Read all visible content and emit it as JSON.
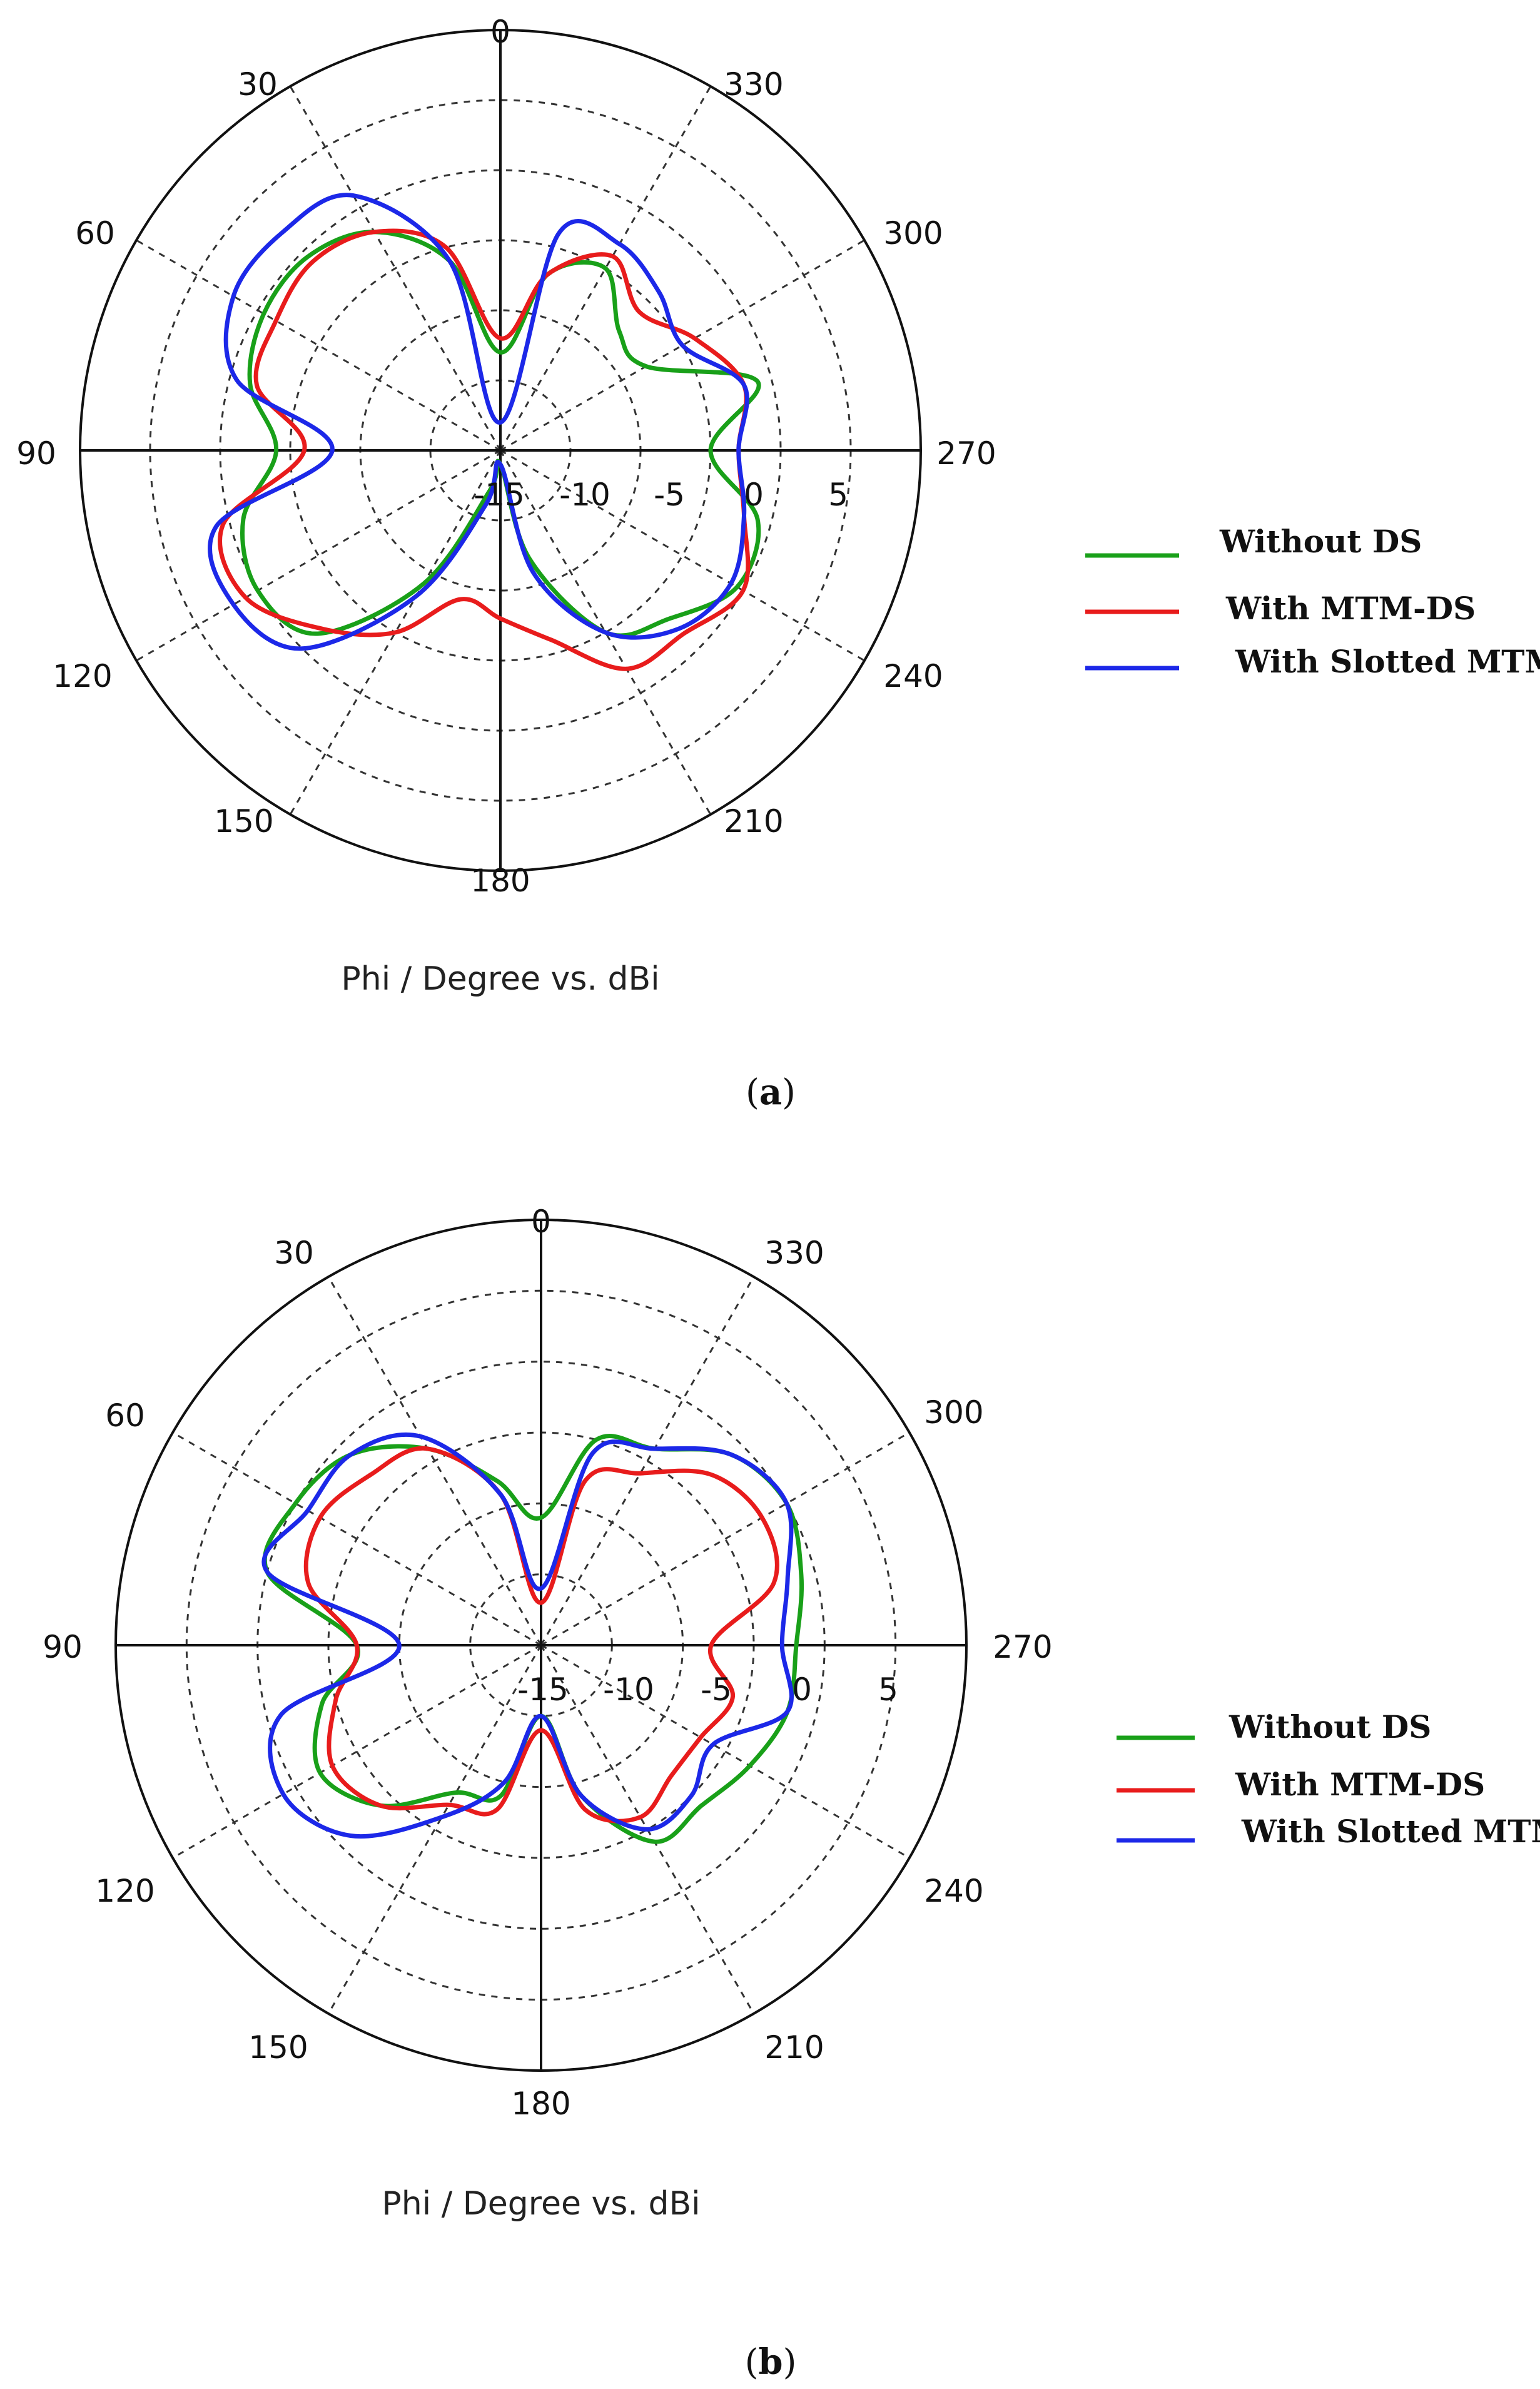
{
  "chart_data": [
    {
      "type": "polar-line",
      "panel_label": "a",
      "title": "",
      "xlabel": "Phi / Degree vs. dBi",
      "angle_ticks": [
        "0",
        "30",
        "60",
        "90",
        "120",
        "150",
        "180",
        "210",
        "240",
        "270",
        "300",
        "330"
      ],
      "angle_direction": "counterclockwise",
      "radial_ticks": [
        "-15",
        "-10",
        "-5",
        "0",
        "5"
      ],
      "radial_tick_values": [
        -15,
        -10,
        -5,
        0,
        5
      ],
      "rlim": [
        -20,
        10
      ],
      "grid": true,
      "legend": "right",
      "angles_deg": [
        0,
        15,
        30,
        45,
        60,
        75,
        90,
        105,
        120,
        135,
        150,
        165,
        180,
        195,
        210,
        225,
        240,
        255,
        270,
        285,
        300,
        315,
        330,
        345
      ],
      "series": [
        {
          "name": "Without DS",
          "color": "#19a019",
          "values": [
            -13,
            -6,
            -2,
            -0.5,
            -0.5,
            -1.5,
            -4,
            -1,
            0,
            -1.5,
            -9,
            -17,
            -19,
            -12,
            -5,
            -3,
            -0.5,
            -1,
            -5,
            -1,
            -8,
            -8,
            -5,
            -7
          ]
        },
        {
          "name": "With MTM-DS",
          "color": "#e81c1c",
          "values": [
            -12,
            -5,
            -2,
            -1,
            -1.5,
            -2,
            -6,
            0.5,
            1,
            -2,
            -5,
            -9,
            -8,
            -6,
            -2,
            -1.5,
            0,
            -2,
            -3,
            -2,
            -4,
            -6,
            -4,
            -7
          ]
        },
        {
          "name": "With Slotted MTM-DS",
          "color": "#1c28e8",
          "values": [
            -18,
            -6,
            1,
            2,
            2,
            -0.5,
            -8,
            1,
            2,
            0,
            -8,
            -16,
            -19,
            -11,
            -5,
            -2,
            -1,
            -2,
            -3,
            -2,
            -5,
            -4,
            -3,
            -4
          ]
        }
      ]
    },
    {
      "type": "polar-line",
      "panel_label": "b",
      "title": "",
      "xlabel": "Phi / Degree vs. dBi",
      "angle_ticks": [
        "0",
        "30",
        "60",
        "90",
        "120",
        "150",
        "180",
        "210",
        "240",
        "270",
        "300",
        "330"
      ],
      "angle_direction": "counterclockwise",
      "radial_ticks": [
        "-15",
        "-10",
        "-5",
        "0",
        "5"
      ],
      "radial_tick_values": [
        -15,
        -10,
        -5,
        0,
        5
      ],
      "rlim": [
        -20,
        10
      ],
      "grid": true,
      "legend": "right",
      "angles_deg": [
        0,
        15,
        30,
        45,
        60,
        75,
        90,
        105,
        120,
        135,
        150,
        165,
        180,
        195,
        210,
        225,
        240,
        255,
        270,
        285,
        300,
        315,
        330,
        345
      ],
      "series": [
        {
          "name": "Without DS",
          "color": "#19a019",
          "values": [
            -11,
            -8,
            -4,
            -1,
            0,
            0,
            -7,
            -4,
            -2,
            -4,
            -8,
            -9,
            -15,
            -9,
            -4,
            -4,
            -3,
            -2,
            -2,
            -1,
            0,
            -1,
            -4,
            -5
          ]
        },
        {
          "name": "With MTM-DS",
          "color": "#e81c1c",
          "values": [
            -17,
            -9,
            -4,
            -3,
            -2,
            -3,
            -7,
            -5,
            -3,
            -4,
            -7,
            -8,
            -14,
            -8,
            -6,
            -7,
            -7,
            -6,
            -8,
            -3,
            -2,
            -3,
            -6,
            -8
          ]
        },
        {
          "name": "With Slotted MTM-DS",
          "color": "#1c28e8",
          "values": [
            -16,
            -9,
            -3,
            -1,
            -1,
            0,
            -10,
            -1,
            1,
            -1,
            -6,
            -10,
            -15,
            -9,
            -5,
            -5,
            -6,
            -2,
            -3,
            -2,
            0,
            -1,
            -4,
            -6
          ]
        }
      ]
    }
  ]
}
